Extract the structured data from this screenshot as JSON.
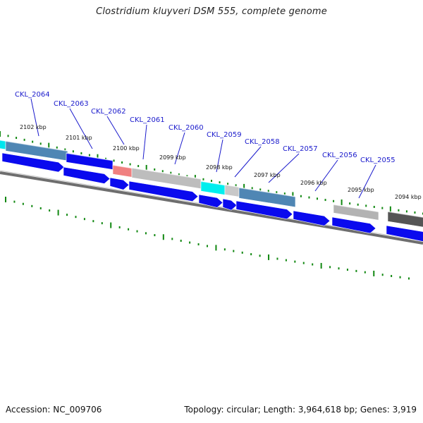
{
  "title": "Clostridium kluyveri DSM 555, complete genome",
  "accession": "Accession: NC_009706",
  "summary": "Topology: circular; Length: 3,964,618 bp; Genes: 3,919",
  "colors": {
    "forward_cds": "#0a0aee",
    "backbone": "#777777",
    "tick": "#118811",
    "label": "#1a1acc"
  },
  "kbp_labels": [
    "2102 kbp",
    "2101 kbp",
    "2100 kbp",
    "2099 kbp",
    "2098 kbp",
    "2097 kbp",
    "2096 kbp",
    "2095 kbp",
    "2094 kbp"
  ],
  "genes": [
    {
      "id": "CKL_2064"
    },
    {
      "id": "CKL_2063"
    },
    {
      "id": "CKL_2062"
    },
    {
      "id": "CKL_2061"
    },
    {
      "id": "CKL_2060"
    },
    {
      "id": "CKL_2059"
    },
    {
      "id": "CKL_2058"
    },
    {
      "id": "CKL_2057"
    },
    {
      "id": "CKL_2056"
    },
    {
      "id": "CKL_2055"
    }
  ]
}
